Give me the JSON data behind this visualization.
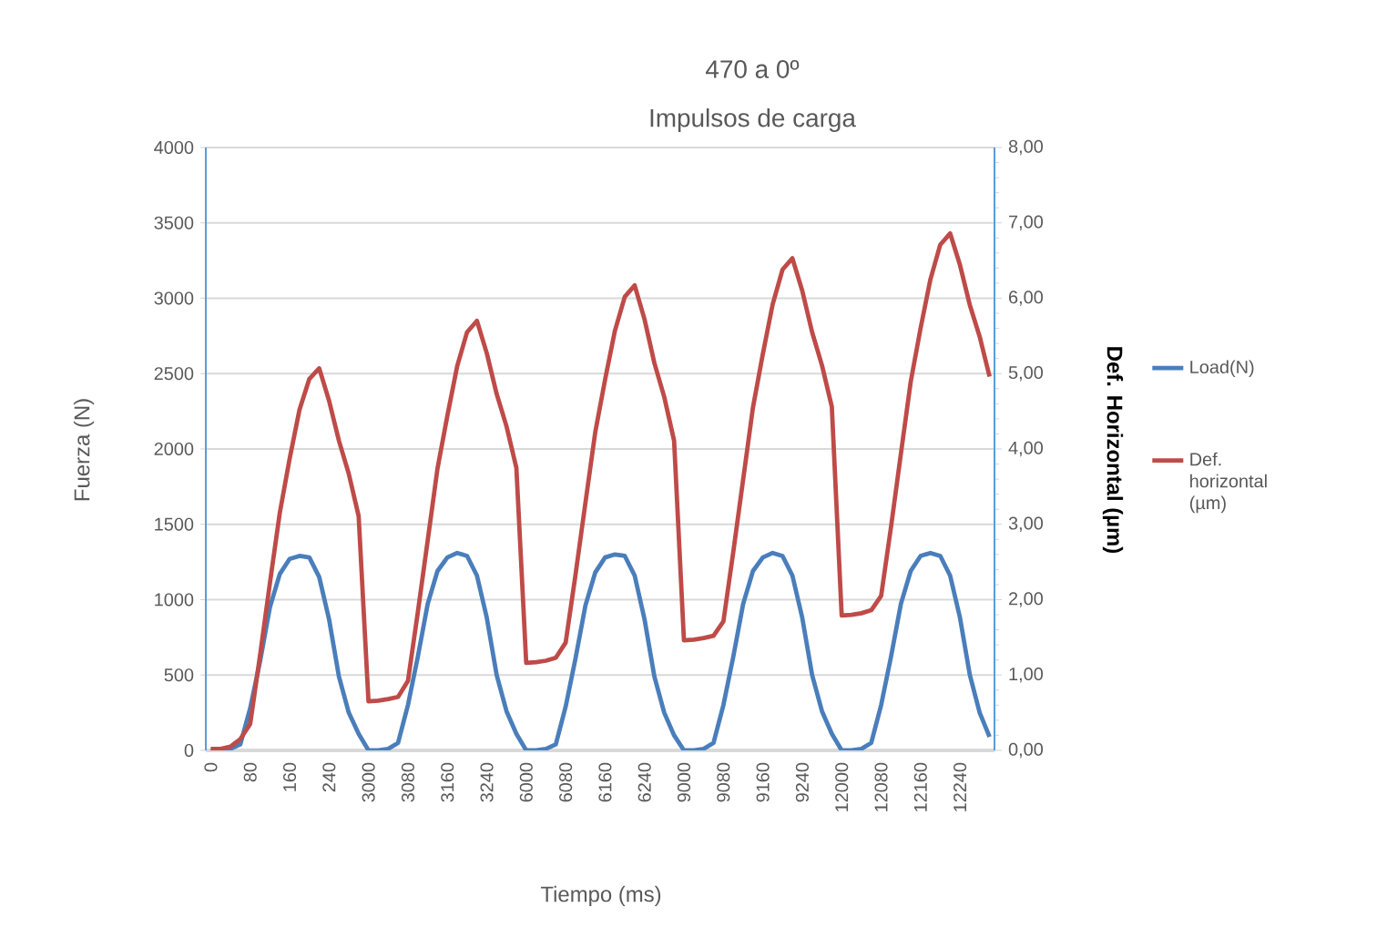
{
  "chart_data": {
    "type": "line",
    "title": "470 a 0º",
    "subtitle": "Impulsos de carga",
    "xlabel": "Tiempo (ms)",
    "ylabel": "Fuerza (N)",
    "y2label": "**Def. Horizontal (µm)**",
    "categories": [
      "0",
      null,
      null,
      null,
      "80",
      null,
      null,
      null,
      "160",
      null,
      null,
      null,
      "240",
      null,
      null,
      null,
      "3000",
      null,
      null,
      null,
      "3080",
      null,
      null,
      null,
      "3160",
      null,
      null,
      null,
      "3240",
      null,
      null,
      null,
      "6000",
      null,
      null,
      null,
      "6080",
      null,
      null,
      null,
      "6160",
      null,
      null,
      null,
      "6240",
      null,
      null,
      null,
      "9000",
      null,
      null,
      null,
      "9080",
      null,
      null,
      null,
      "9160",
      null,
      null,
      null,
      "9240",
      null,
      null,
      null,
      "12000",
      null,
      null,
      null,
      "12080",
      null,
      null,
      null,
      "12160",
      null,
      null,
      null,
      "12240",
      null,
      null,
      null
    ],
    "series": [
      {
        "name": "Load(N)",
        "color": "#4a7ebb",
        "values": [
          0,
          0,
          10,
          40,
          280,
          590,
          950,
          1170,
          1270,
          1290,
          1280,
          1150,
          870,
          490,
          250,
          110,
          0,
          0,
          10,
          50,
          300,
          620,
          970,
          1190,
          1280,
          1310,
          1290,
          1160,
          880,
          500,
          260,
          110,
          0,
          0,
          10,
          40,
          290,
          610,
          960,
          1180,
          1280,
          1300,
          1290,
          1160,
          870,
          490,
          250,
          100,
          0,
          0,
          10,
          50,
          300,
          620,
          970,
          1190,
          1280,
          1310,
          1290,
          1160,
          880,
          500,
          260,
          110,
          0,
          0,
          10,
          50,
          300,
          620,
          970,
          1190,
          1290,
          1310,
          1290,
          1160,
          880,
          500,
          250,
          90
        ]
      },
      {
        "name": "Def. horizontal (µm)",
        "color": "#be4b48",
        "axis": "y2",
        "values": [
          0.02,
          0.02,
          0.05,
          0.15,
          0.35,
          1.26,
          2.22,
          3.15,
          3.87,
          4.52,
          4.93,
          5.07,
          4.64,
          4.11,
          3.67,
          3.11,
          0.65,
          0.66,
          0.68,
          0.71,
          0.92,
          1.83,
          2.78,
          3.74,
          4.44,
          5.1,
          5.55,
          5.7,
          5.27,
          4.73,
          4.3,
          3.75,
          1.16,
          1.17,
          1.19,
          1.23,
          1.43,
          2.33,
          3.28,
          4.22,
          4.92,
          5.57,
          6.02,
          6.17,
          5.72,
          5.14,
          4.69,
          4.11,
          1.46,
          1.47,
          1.49,
          1.52,
          1.71,
          2.63,
          3.59,
          4.55,
          5.26,
          5.92,
          6.38,
          6.53,
          6.1,
          5.55,
          5.11,
          4.56,
          1.79,
          1.8,
          1.82,
          1.86,
          2.05,
          2.96,
          3.93,
          4.89,
          5.6,
          6.25,
          6.71,
          6.86,
          6.44,
          5.91,
          5.49,
          4.96
        ]
      }
    ],
    "ylim": [
      0,
      4000
    ],
    "yticks": [
      0,
      500,
      1000,
      1500,
      2000,
      2500,
      3000,
      3500,
      4000
    ],
    "y2lim": [
      0,
      8
    ],
    "y2ticks": [
      {
        "value": 0,
        "label": "0,00"
      },
      {
        "value": 1,
        "label": "1,00"
      },
      {
        "value": 2,
        "label": "2,00"
      },
      {
        "value": 3,
        "label": "3,00"
      },
      {
        "value": 4,
        "label": "4,00"
      },
      {
        "value": 5,
        "label": "5,00"
      },
      {
        "value": 6,
        "label": "6,00"
      },
      {
        "value": 7,
        "label": "7,00"
      },
      {
        "value": 8,
        "label": "8,00"
      }
    ],
    "grid": "y",
    "legend": "right"
  }
}
